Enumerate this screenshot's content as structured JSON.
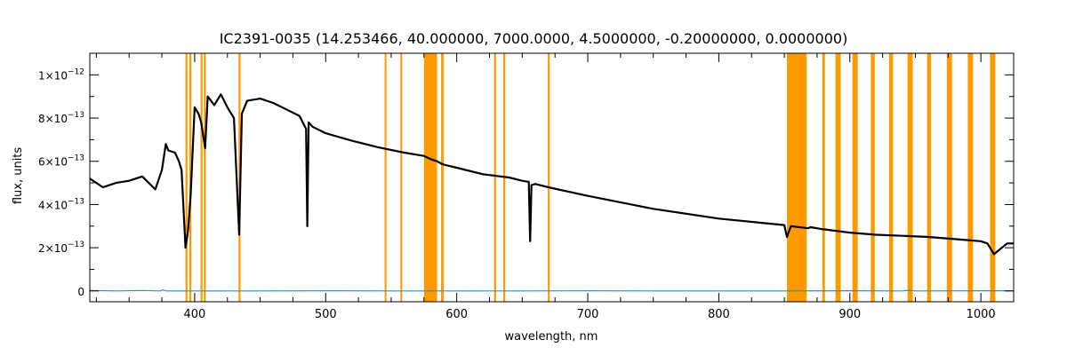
{
  "chart_data": {
    "type": "line",
    "title": "IC2391-0035   (14.253466, 40.000000, 7000.0000, 4.5000000, -0.20000000, 0.0000000)",
    "xlabel": "wavelength, nm",
    "ylabel": "flux, units",
    "xlim": [
      320,
      1025
    ],
    "ylim": [
      -5e-14,
      1.1e-12
    ],
    "x_ticks": [
      400,
      500,
      600,
      700,
      800,
      900,
      1000
    ],
    "y_ticks": [
      {
        "value": 0,
        "mantissa": "0",
        "exponent": ""
      },
      {
        "value": 2e-13,
        "mantissa": "2×10",
        "exponent": "−13"
      },
      {
        "value": 4e-13,
        "mantissa": "4×10",
        "exponent": "−13"
      },
      {
        "value": 6e-13,
        "mantissa": "6×10",
        "exponent": "−13"
      },
      {
        "value": 8e-13,
        "mantissa": "8×10",
        "exponent": "−13"
      },
      {
        "value": 1e-12,
        "mantissa": "1×10",
        "exponent": "−12"
      }
    ],
    "grid": false,
    "masked_regions": [
      [
        393.0,
        394.5
      ],
      [
        396.0,
        397.5
      ],
      [
        404.5,
        406.0
      ],
      [
        407.0,
        408.5
      ],
      [
        433.5,
        435.0
      ],
      [
        545.0,
        546.0
      ],
      [
        557.0,
        558.0
      ],
      [
        575.0,
        585.0
      ],
      [
        588.0,
        590.0
      ],
      [
        628.5,
        630.0
      ],
      [
        635.5,
        637.0
      ],
      [
        669.5,
        671.0
      ],
      [
        852.0,
        867.0
      ],
      [
        879.0,
        881.0
      ],
      [
        889.0,
        893.0
      ],
      [
        902.0,
        906.0
      ],
      [
        916.0,
        919.0
      ],
      [
        930.0,
        933.0
      ],
      [
        944.0,
        948.0
      ],
      [
        959.0,
        962.0
      ],
      [
        974.0,
        978.0
      ],
      [
        990.0,
        994.0
      ],
      [
        1007.0,
        1011.0
      ]
    ],
    "series": [
      {
        "color": "#000000",
        "x": [
          320,
          330,
          340,
          350,
          360,
          365,
          370,
          375,
          378,
          380,
          385,
          388,
          390,
          393,
          395,
          397,
          400,
          403,
          405,
          408,
          410,
          415,
          420,
          425,
          430,
          434,
          436,
          440,
          450,
          460,
          470,
          480,
          485,
          486,
          487,
          490,
          500,
          520,
          540,
          560,
          575,
          580,
          585,
          588,
          590,
          600,
          620,
          640,
          650,
          655,
          656,
          657,
          660,
          670,
          700,
          750,
          800,
          850,
          852,
          855,
          868,
          870,
          880,
          900,
          920,
          940,
          960,
          980,
          1000,
          1005,
          1010,
          1020,
          1025
        ],
        "y": [
          5.2e-13,
          4.8e-13,
          5e-13,
          5.1e-13,
          5.3e-13,
          5e-13,
          4.7e-13,
          5.6e-13,
          6.8e-13,
          6.5e-13,
          6.4e-13,
          6e-13,
          5.6e-13,
          2e-13,
          2.8e-13,
          4.5e-13,
          8.5e-13,
          8.2e-13,
          7.8e-13,
          6.6e-13,
          9e-13,
          8.6e-13,
          9.1e-13,
          8.5e-13,
          8e-13,
          2.6e-13,
          8.2e-13,
          8.8e-13,
          8.9e-13,
          8.7e-13,
          8.4e-13,
          8.1e-13,
          7.5e-13,
          3e-13,
          7.8e-13,
          7.6e-13,
          7.3e-13,
          6.95e-13,
          6.65e-13,
          6.4e-13,
          6.25e-13,
          6.1e-13,
          6e-13,
          5.9e-13,
          5.85e-13,
          5.7e-13,
          5.4e-13,
          5.25e-13,
          5.1e-13,
          5.05e-13,
          2.3e-13,
          4.9e-13,
          4.95e-13,
          4.8e-13,
          4.4e-13,
          3.8e-13,
          3.35e-13,
          3.05e-13,
          2.5e-13,
          3e-13,
          2.9e-13,
          2.95e-13,
          2.85e-13,
          2.7e-13,
          2.6e-13,
          2.55e-13,
          2.5e-13,
          2.4e-13,
          2.3e-13,
          2.2e-13,
          1.7e-13,
          2.2e-13,
          2.2e-13
        ]
      },
      {
        "color": "#1f8fe6",
        "x": [
          320,
          340,
          360,
          374,
          376,
          378,
          400,
          450,
          500,
          550,
          600,
          650,
          700,
          750,
          800,
          850,
          900,
          940,
          945,
          950,
          1000,
          1025
        ],
        "y": [
          2e-15,
          0.0,
          2e-15,
          0.0,
          5e-15,
          0.0,
          0.0,
          0.0,
          1e-15,
          0.0,
          0.0,
          0.0,
          1e-15,
          0.0,
          0.0,
          0.0,
          1e-15,
          0.0,
          3e-15,
          0.0,
          1e-15,
          1e-15
        ]
      }
    ]
  }
}
